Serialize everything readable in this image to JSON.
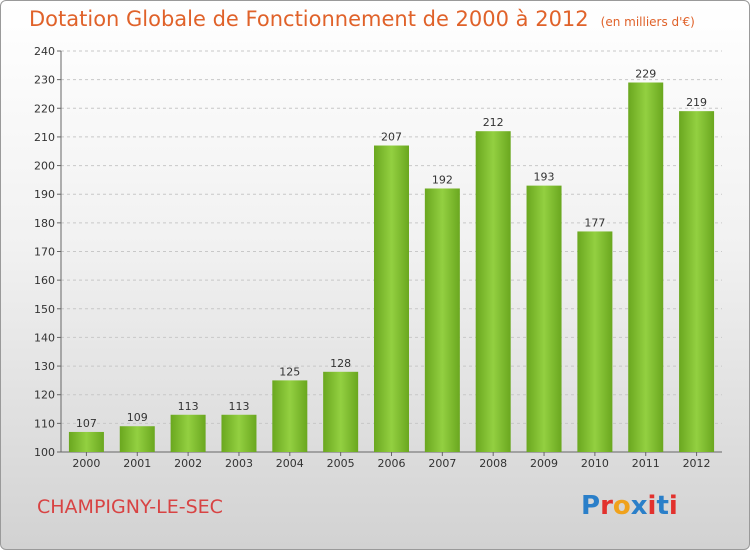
{
  "header": {
    "title": "Dotation Globale de Fonctionnement de 2000 à 2012",
    "subtitle": "(en milliers d'€)"
  },
  "footer": {
    "commune": "CHAMPIGNY-LE-SEC",
    "brand": "Proxiti",
    "brand_letters": [
      "P",
      "r",
      "o",
      "x",
      "i",
      "t",
      "i"
    ],
    "brand_colors": [
      "#2a7fc9",
      "#e2312d",
      "#f0a21c",
      "#2a7fc9",
      "#e2312d",
      "#2a7fc9",
      "#e2312d"
    ]
  },
  "chart_data": {
    "type": "bar",
    "categories": [
      "2000",
      "2001",
      "2002",
      "2003",
      "2004",
      "2005",
      "2006",
      "2007",
      "2008",
      "2009",
      "2010",
      "2011",
      "2012"
    ],
    "values": [
      107,
      109,
      113,
      113,
      125,
      128,
      207,
      192,
      212,
      193,
      177,
      229,
      219
    ],
    "ylim": [
      100,
      240
    ],
    "yticks": [
      100,
      110,
      120,
      130,
      140,
      150,
      160,
      170,
      180,
      190,
      200,
      210,
      220,
      230,
      240
    ],
    "grid": true,
    "bar_color": "#7cbf2e"
  }
}
